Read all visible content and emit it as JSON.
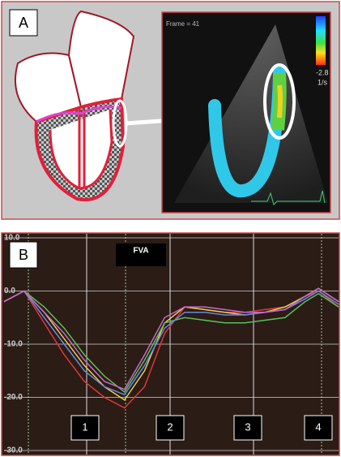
{
  "panel_a": {
    "label": "A",
    "frame_text": "Frame = 41",
    "scale_min_label": "-2.8",
    "scale_unit": "1/s"
  },
  "chart_data": {
    "type": "line",
    "panel_label": "B",
    "title": "FVA",
    "annotations": [
      "1",
      "2",
      "3",
      "4"
    ],
    "x": [
      0,
      6,
      12,
      18,
      24,
      30,
      36,
      42,
      48,
      54,
      60,
      66,
      72,
      78,
      84,
      90,
      94,
      100
    ],
    "xlim": [
      0,
      100
    ],
    "ylim": [
      -30,
      10
    ],
    "yticks": [
      {
        "value": 10,
        "label": "10.0"
      },
      {
        "value": 0,
        "label": "0.0"
      },
      {
        "value": -10,
        "label": "-10.0"
      },
      {
        "value": -20,
        "label": "-20.0"
      },
      {
        "value": -30,
        "label": "-30.0"
      }
    ],
    "grid": true,
    "series": [
      {
        "color": "#e03838",
        "values": [
          -2,
          0,
          -6,
          -12,
          -17,
          -20,
          -22,
          -18,
          -8,
          -3,
          -3.5,
          -4,
          -4,
          -3.5,
          -3,
          -1,
          0,
          -3
        ]
      },
      {
        "color": "#e8d048",
        "values": [
          -2,
          0,
          -4,
          -9,
          -14,
          -18,
          -20.5,
          -15,
          -6,
          -3,
          -3.5,
          -4,
          -4.5,
          -4,
          -3,
          -1,
          0.5,
          -2
        ]
      },
      {
        "color": "#58c058",
        "values": [
          -2,
          0,
          -3,
          -7,
          -12,
          -16,
          -19,
          -13,
          -6,
          -5,
          -5.5,
          -6,
          -6,
          -5.5,
          -5,
          -2,
          -0.5,
          -3
        ]
      },
      {
        "color": "#6888e8",
        "values": [
          -2,
          0,
          -5,
          -10,
          -15,
          -18,
          -19.5,
          -14,
          -7,
          -4,
          -4,
          -4.5,
          -4.5,
          -4,
          -3.5,
          -1.5,
          0,
          -2.5
        ]
      },
      {
        "color": "#c868c8",
        "values": [
          -2,
          0,
          -4,
          -8,
          -13,
          -17,
          -18.5,
          -12,
          -5,
          -3,
          -3,
          -3.5,
          -4,
          -4,
          -3.5,
          -1,
          0.5,
          -2
        ]
      }
    ]
  }
}
